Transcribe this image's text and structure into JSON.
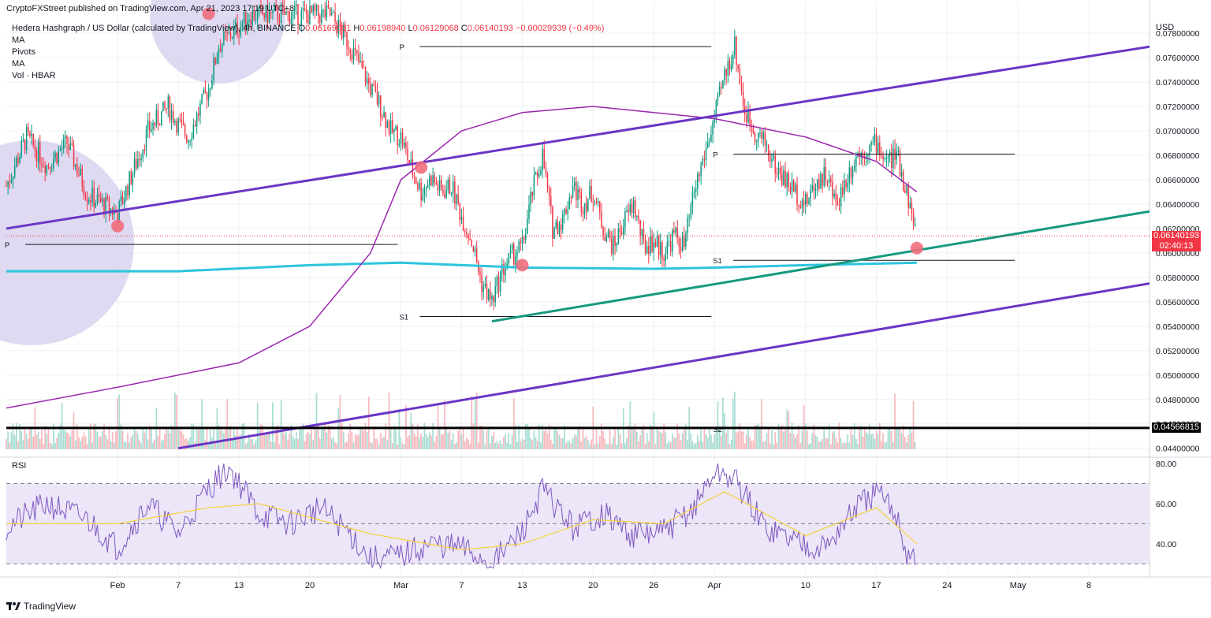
{
  "publisher": "CryptoFXStreet published on TradingView.com, Apr 21, 2023 17:19 UTC+8",
  "header": {
    "title": "Hedera Hashgraph / US Dollar (calculated by TradingView), 4h, BINANCE",
    "ohlc": {
      "o_label": "O",
      "o": "0.06169081",
      "h_label": "H",
      "h": "0.06198940",
      "l_label": "L",
      "l": "0.06129068",
      "c_label": "C",
      "c": "0.06140193",
      "change": "−0.00029939 (−0.49%)"
    },
    "indicators": [
      "MA",
      "Pivots",
      "MA",
      "Vol · HBAR"
    ]
  },
  "currency": "USD",
  "rsi_label": "RSI",
  "price_badge": {
    "price": "0.06140193",
    "countdown": "02:40:13",
    "color": "#f23645"
  },
  "level_badge": {
    "price": "0.04566815",
    "color": "#000000"
  },
  "footer": {
    "brand": "TradingView"
  },
  "chart_data": {
    "type": "candlestick",
    "symbol": "HBAR/USD",
    "timeframe": "4h",
    "price_axis": {
      "ticks": [
        "0.07800000",
        "0.07600000",
        "0.07400000",
        "0.07200000",
        "0.07000000",
        "0.06800000",
        "0.06600000",
        "0.06400000",
        "0.06200000",
        "0.06000000",
        "0.05800000",
        "0.05600000",
        "0.05400000",
        "0.05200000",
        "0.05000000",
        "0.04800000",
        "0.04600000",
        "0.04400000"
      ],
      "tick_values": [
        0.078,
        0.076,
        0.074,
        0.072,
        0.07,
        0.068,
        0.066,
        0.064,
        0.062,
        0.06,
        0.058,
        0.056,
        0.054,
        0.052,
        0.05,
        0.048,
        0.046,
        0.044
      ],
      "range": [
        0.0434,
        0.0793
      ]
    },
    "rsi_axis": {
      "ticks": [
        "80.00",
        "60.00",
        "40.00"
      ],
      "tick_values": [
        80,
        60,
        40
      ],
      "range": [
        25,
        82
      ],
      "band": [
        30,
        70
      ],
      "mid": 50
    },
    "time_axis": {
      "labels": [
        "Feb",
        "7",
        "13",
        "20",
        "Mar",
        "7",
        "13",
        "20",
        "26",
        "Apr",
        "10",
        "17",
        "24",
        "May",
        "8"
      ],
      "dates": [
        "2023-02-01",
        "2023-02-07",
        "2023-02-13",
        "2023-02-20",
        "2023-03-01",
        "2023-03-07",
        "2023-03-13",
        "2023-03-20",
        "2023-03-26",
        "2023-04-01",
        "2023-04-10",
        "2023-04-17",
        "2023-04-24",
        "2023-05-01",
        "2023-05-08"
      ],
      "range": [
        "2023-01-21",
        "2023-05-14"
      ]
    },
    "close_path": [
      [
        "2023-01-21",
        0.0655
      ],
      [
        "2023-01-23",
        0.0695
      ],
      [
        "2023-01-25",
        0.0672
      ],
      [
        "2023-01-27",
        0.069
      ],
      [
        "2023-01-29",
        0.0648
      ],
      [
        "2023-02-01",
        0.0632
      ],
      [
        "2023-02-02",
        0.0655
      ],
      [
        "2023-02-04",
        0.07
      ],
      [
        "2023-02-06",
        0.072
      ],
      [
        "2023-02-07",
        0.0705
      ],
      [
        "2023-02-08",
        0.0695
      ],
      [
        "2023-02-10",
        0.0735
      ],
      [
        "2023-02-11",
        0.077
      ],
      [
        "2023-02-13",
        0.0785
      ],
      [
        "2023-02-14",
        0.0795
      ],
      [
        "2023-02-22",
        0.0795
      ],
      [
        "2023-02-24",
        0.077
      ],
      [
        "2023-02-26",
        0.0735
      ],
      [
        "2023-02-27",
        0.072
      ],
      [
        "2023-02-28",
        0.07
      ],
      [
        "2023-03-01",
        0.0695
      ],
      [
        "2023-03-02",
        0.067
      ],
      [
        "2023-03-03",
        0.065
      ],
      [
        "2023-03-04",
        0.0662
      ],
      [
        "2023-03-05",
        0.065
      ],
      [
        "2023-03-06",
        0.0655
      ],
      [
        "2023-03-07",
        0.063
      ],
      [
        "2023-03-08",
        0.061
      ],
      [
        "2023-03-09",
        0.0575
      ],
      [
        "2023-03-10",
        0.056
      ],
      [
        "2023-03-11",
        0.0585
      ],
      [
        "2023-03-12",
        0.0598
      ],
      [
        "2023-03-13",
        0.0605
      ],
      [
        "2023-03-14",
        0.065
      ],
      [
        "2023-03-15",
        0.068
      ],
      [
        "2023-03-16",
        0.062
      ],
      [
        "2023-03-17",
        0.0628
      ],
      [
        "2023-03-18",
        0.0655
      ],
      [
        "2023-03-19",
        0.064
      ],
      [
        "2023-03-20",
        0.065
      ],
      [
        "2023-03-21",
        0.062
      ],
      [
        "2023-03-22",
        0.0605
      ],
      [
        "2023-03-23",
        0.0625
      ],
      [
        "2023-03-24",
        0.064
      ],
      [
        "2023-03-25",
        0.0605
      ],
      [
        "2023-03-26",
        0.061
      ],
      [
        "2023-03-27",
        0.06
      ],
      [
        "2023-03-28",
        0.0615
      ],
      [
        "2023-03-29",
        0.0605
      ],
      [
        "2023-03-30",
        0.065
      ],
      [
        "2023-03-31",
        0.068
      ],
      [
        "2023-04-01",
        0.071
      ],
      [
        "2023-04-02",
        0.0745
      ],
      [
        "2023-04-03",
        0.077
      ],
      [
        "2023-04-04",
        0.0715
      ],
      [
        "2023-04-05",
        0.07
      ],
      [
        "2023-04-06",
        0.069
      ],
      [
        "2023-04-07",
        0.067
      ],
      [
        "2023-04-08",
        0.066
      ],
      [
        "2023-04-09",
        0.065
      ],
      [
        "2023-04-10",
        0.064
      ],
      [
        "2023-04-11",
        0.0658
      ],
      [
        "2023-04-12",
        0.0665
      ],
      [
        "2023-04-13",
        0.064
      ],
      [
        "2023-04-14",
        0.066
      ],
      [
        "2023-04-15",
        0.068
      ],
      [
        "2023-04-16",
        0.0685
      ],
      [
        "2023-04-17",
        0.069
      ],
      [
        "2023-04-18",
        0.0675
      ],
      [
        "2023-04-19",
        0.068
      ],
      [
        "2023-04-20",
        0.065
      ],
      [
        "2023-04-21",
        0.0614
      ]
    ],
    "ma_purple": [
      [
        "2023-01-21",
        0.0473
      ],
      [
        "2023-02-01",
        0.049
      ],
      [
        "2023-02-13",
        0.051
      ],
      [
        "2023-02-20",
        0.054
      ],
      [
        "2023-02-26",
        0.06
      ],
      [
        "2023-03-01",
        0.066
      ],
      [
        "2023-03-07",
        0.07
      ],
      [
        "2023-03-13",
        0.0715
      ],
      [
        "2023-03-20",
        0.072
      ],
      [
        "2023-03-26",
        0.0715
      ],
      [
        "2023-04-01",
        0.071
      ],
      [
        "2023-04-10",
        0.0695
      ],
      [
        "2023-04-17",
        0.0675
      ],
      [
        "2023-04-21",
        0.065
      ]
    ],
    "ma_cyan": [
      [
        "2023-01-21",
        0.0585
      ],
      [
        "2023-02-07",
        0.0585
      ],
      [
        "2023-02-20",
        0.059
      ],
      [
        "2023-03-01",
        0.0592
      ],
      [
        "2023-03-13",
        0.0588
      ],
      [
        "2023-03-26",
        0.0587
      ],
      [
        "2023-04-01",
        0.0588
      ],
      [
        "2023-04-10",
        0.059
      ],
      [
        "2023-04-21",
        0.0592
      ]
    ],
    "trendlines": [
      {
        "color": "#6a36c6",
        "points": [
          [
            "2023-01-21",
            0.062
          ],
          [
            "2023-05-14",
            0.0769
          ]
        ]
      },
      {
        "color": "#6a36c6",
        "points": [
          [
            "2023-02-07",
            0.044
          ],
          [
            "2023-05-14",
            0.0575
          ]
        ]
      },
      {
        "color": "#159a7f",
        "points": [
          [
            "2023-03-10",
            0.0544
          ],
          [
            "2023-05-14",
            0.0634
          ]
        ]
      },
      {
        "color": "#000000",
        "points": [
          [
            "2023-01-21",
            0.04566815
          ],
          [
            "2023-05-14",
            0.04566815
          ]
        ]
      }
    ],
    "pivots": [
      {
        "label": "P",
        "value": 0.0607,
        "x0": "2023-01-21",
        "x1": "2023-03-01"
      },
      {
        "label": "P",
        "value": 0.0769,
        "x0": "2023-03-01",
        "x1": "2023-04-01"
      },
      {
        "label": "S1",
        "value": 0.0548,
        "x0": "2023-03-01",
        "x1": "2023-04-01"
      },
      {
        "label": "P",
        "value": 0.0681,
        "x0": "2023-04-01",
        "x1": "2023-05-01"
      },
      {
        "label": "S1",
        "value": 0.0594,
        "x0": "2023-04-01",
        "x1": "2023-05-01"
      },
      {
        "label": "S2",
        "value": 0.0456,
        "x0": "2023-04-01",
        "x1": "2023-04-01"
      }
    ],
    "markers": [
      [
        "2023-02-01",
        0.0622
      ],
      [
        "2023-02-10",
        0.0796
      ],
      [
        "2023-03-03",
        0.067
      ],
      [
        "2023-03-13",
        0.059
      ],
      [
        "2023-04-21",
        0.0604
      ]
    ],
    "circles": [
      {
        "center": [
          "2023-01-21",
          0.0604
        ],
        "radius_days": 5
      },
      {
        "center": [
          "2023-02-15",
          0.08
        ],
        "radius_days": 5
      }
    ],
    "rsi": [
      [
        "2023-01-21",
        48
      ],
      [
        "2023-01-25",
        60
      ],
      [
        "2023-01-29",
        52
      ],
      [
        "2023-02-01",
        38
      ],
      [
        "2023-02-04",
        60
      ],
      [
        "2023-02-07",
        45
      ],
      [
        "2023-02-10",
        68
      ],
      [
        "2023-02-12",
        78
      ],
      [
        "2023-02-15",
        55
      ],
      [
        "2023-02-18",
        50
      ],
      [
        "2023-02-21",
        58
      ],
      [
        "2023-02-24",
        45
      ],
      [
        "2023-02-26",
        32
      ],
      [
        "2023-03-01",
        34
      ],
      [
        "2023-03-04",
        40
      ],
      [
        "2023-03-07",
        38
      ],
      [
        "2023-03-10",
        30
      ],
      [
        "2023-03-13",
        46
      ],
      [
        "2023-03-15",
        67
      ],
      [
        "2023-03-18",
        48
      ],
      [
        "2023-03-21",
        55
      ],
      [
        "2023-03-24",
        44
      ],
      [
        "2023-03-27",
        46
      ],
      [
        "2023-03-30",
        58
      ],
      [
        "2023-04-01",
        76
      ],
      [
        "2023-04-03",
        72
      ],
      [
        "2023-04-06",
        48
      ],
      [
        "2023-04-09",
        42
      ],
      [
        "2023-04-12",
        38
      ],
      [
        "2023-04-15",
        58
      ],
      [
        "2023-04-17",
        65
      ],
      [
        "2023-04-19",
        55
      ],
      [
        "2023-04-20",
        35
      ],
      [
        "2023-04-21",
        33
      ]
    ],
    "rsi_ma": [
      [
        "2023-01-21",
        50
      ],
      [
        "2023-02-01",
        50
      ],
      [
        "2023-02-10",
        58
      ],
      [
        "2023-02-15",
        60
      ],
      [
        "2023-02-26",
        45
      ],
      [
        "2023-03-07",
        37
      ],
      [
        "2023-03-13",
        40
      ],
      [
        "2023-03-20",
        52
      ],
      [
        "2023-03-27",
        50
      ],
      [
        "2023-04-02",
        66
      ],
      [
        "2023-04-10",
        44
      ],
      [
        "2023-04-17",
        58
      ],
      [
        "2023-04-21",
        40
      ]
    ]
  }
}
